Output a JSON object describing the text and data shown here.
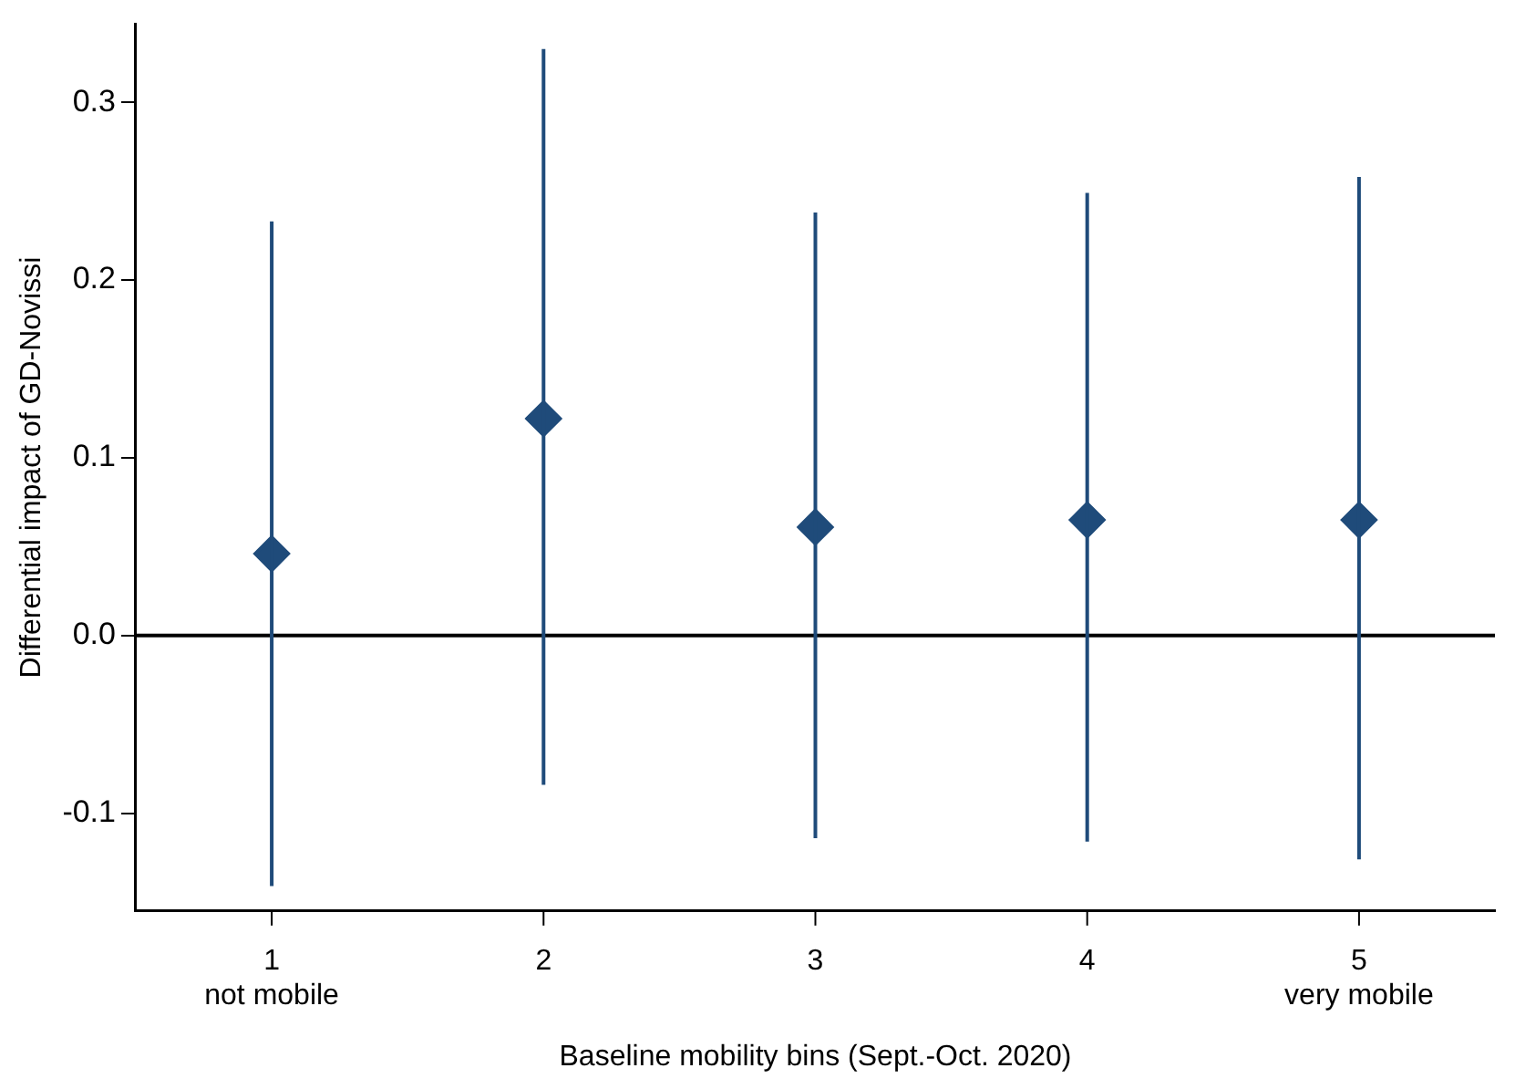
{
  "chart_data": {
    "type": "scatter",
    "xlabel": "Baseline mobility bins (Sept.-Oct. 2020)",
    "ylabel": "Differential impact of GD-Novissi",
    "categories": [
      "1\nnot mobile",
      "2",
      "3",
      "4",
      "5\nvery mobile"
    ],
    "series": [
      {
        "color": "#1f4b7a",
        "values": [
          0.046,
          0.122,
          0.061,
          0.065,
          0.065
        ],
        "errors": [
          [
            -0.141,
            0.233
          ],
          [
            -0.084,
            0.33
          ],
          [
            -0.114,
            0.238
          ],
          [
            -0.116,
            0.249
          ],
          [
            -0.126,
            0.258
          ]
        ]
      }
    ],
    "ylim": [
      -0.155,
      0.344
    ],
    "yticks": [
      {
        "value": -0.1,
        "label": "-0.1"
      },
      {
        "value": 0,
        "label": "0.0"
      },
      {
        "value": 0.1,
        "label": "0.1"
      },
      {
        "value": 0.2,
        "label": "0.2"
      },
      {
        "value": 0.3,
        "label": "0.3"
      }
    ],
    "ref_lines": [
      {
        "axis": "y",
        "value": 0,
        "color": "#000000"
      }
    ],
    "marker": "diamond",
    "grid": false,
    "legend": false
  }
}
